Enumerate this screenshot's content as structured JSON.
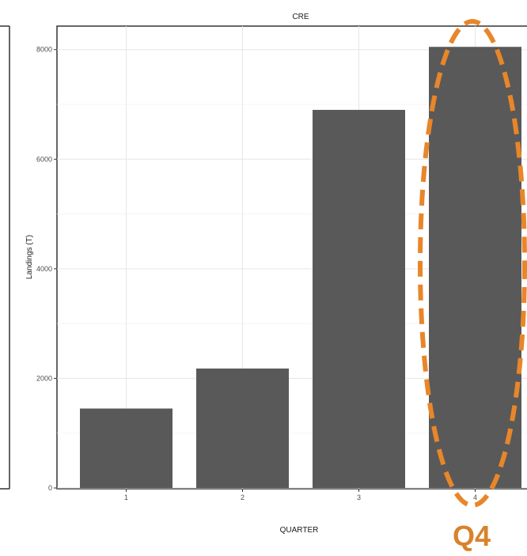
{
  "chart_data": {
    "type": "bar",
    "title": "CRE",
    "xlabel": "QUARTER",
    "ylabel": "Landings (T)",
    "categories": [
      "1",
      "2",
      "3",
      "4"
    ],
    "values": [
      1450,
      2180,
      6900,
      8050
    ],
    "ylim": [
      0,
      8400
    ],
    "yticks": [
      0,
      2000,
      4000,
      6000,
      8000
    ],
    "grid": true,
    "bar_color": "#595959",
    "highlight": {
      "category": "4",
      "label": "Q4",
      "color": "#e8862a"
    }
  }
}
